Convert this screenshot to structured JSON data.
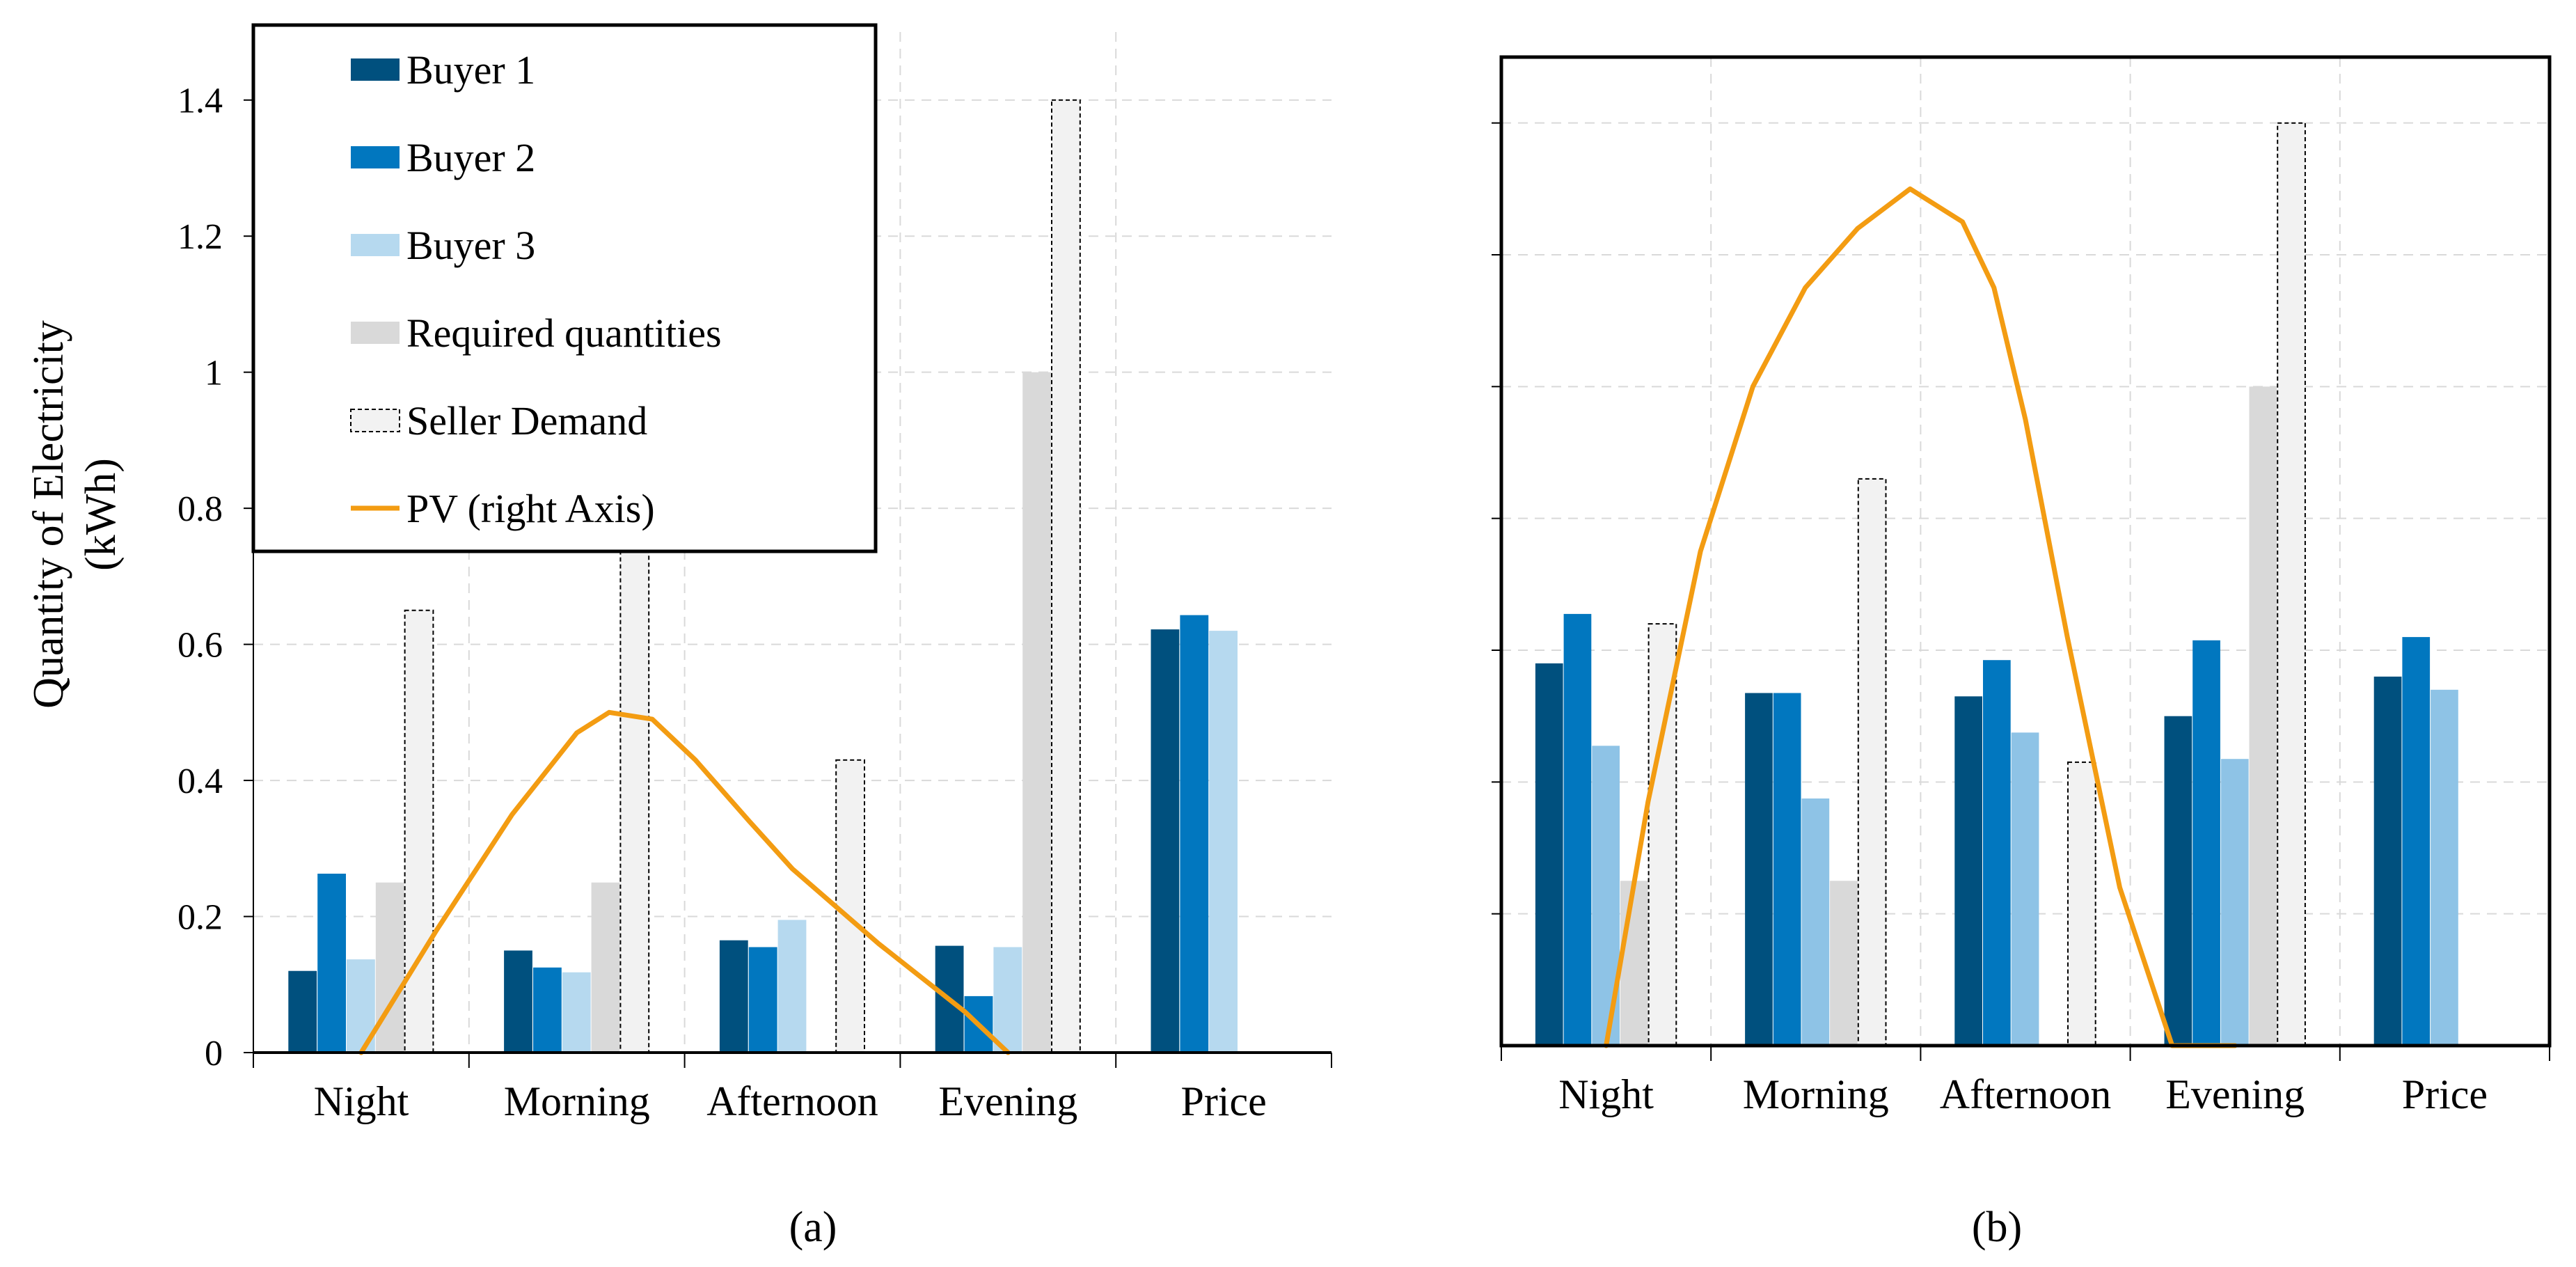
{
  "figure": {
    "caption_a": "(a)",
    "caption_b": "(b)"
  },
  "colors": {
    "buyer1": "#00507E",
    "buyer2": "#0177BF",
    "buyer3_a": "#B6D9EF",
    "buyer3_b": "#8EC3E6",
    "required": "#D9D9D9",
    "seller": "#F2F2F2",
    "pv": "#F39C12"
  },
  "legend": {
    "items": [
      {
        "label": "Buyer 1",
        "key": "buyer1"
      },
      {
        "label": "Buyer 2",
        "key": "buyer2"
      },
      {
        "label": "Buyer 3",
        "key": "buyer3_a"
      },
      {
        "label": "Required quantities",
        "key": "required"
      },
      {
        "label": "Seller Demand",
        "key": "seller"
      },
      {
        "label": "PV (right Axis)",
        "key": "pv"
      }
    ]
  },
  "chart_data": [
    {
      "panel": "a",
      "type": "bar",
      "ylabel_line1": "Quantity of Electricity",
      "ylabel_line2": "(kWh)",
      "ylim": [
        0,
        1.5
      ],
      "yticks": [
        0,
        0.2,
        0.4,
        0.6,
        0.8,
        1,
        1.2,
        1.4
      ],
      "ytick_labels": [
        "0",
        "0.2",
        "0.4",
        "0.6",
        "0.8",
        "1",
        "1.2",
        "1.4"
      ],
      "grid": true,
      "categories": [
        "Night",
        "Morning",
        "Afternoon",
        "Evening",
        "Price"
      ],
      "series": [
        {
          "name": "Buyer 1",
          "key": "buyer1",
          "values": [
            0.12,
            0.15,
            0.165,
            0.157,
            0.622
          ]
        },
        {
          "name": "Buyer 2",
          "key": "buyer2",
          "values": [
            0.263,
            0.125,
            0.155,
            0.083,
            0.643
          ]
        },
        {
          "name": "Buyer 3",
          "key": "buyer3_a",
          "values": [
            0.137,
            0.118,
            0.195,
            0.155,
            0.62
          ]
        },
        {
          "name": "Required quantities",
          "key": "required",
          "values": [
            0.25,
            0.25,
            null,
            1.0,
            null
          ]
        },
        {
          "name": "Seller Demand",
          "key": "seller",
          "values": [
            0.65,
            0.75,
            0.43,
            1.4,
            null
          ]
        }
      ],
      "pv_curve": {
        "name": "PV (right Axis)",
        "x": [
          0,
          0.35,
          0.7,
          1.0,
          1.15,
          1.35,
          1.55,
          1.8,
          2.0,
          2.4,
          2.8,
          3.0
        ],
        "y": [
          0.0,
          0.18,
          0.35,
          0.47,
          0.5,
          0.49,
          0.43,
          0.34,
          0.27,
          0.16,
          0.06,
          0.0
        ]
      }
    },
    {
      "panel": "b",
      "type": "bar",
      "ylim": [
        0,
        1.5
      ],
      "yticks": [
        0.2,
        0.4,
        0.6,
        0.8,
        1,
        1.2,
        1.4
      ],
      "ytick_labels": [],
      "grid": true,
      "categories": [
        "Night",
        "Morning",
        "Afternoon",
        "Evening",
        "Price"
      ],
      "series": [
        {
          "name": "Buyer 1",
          "key": "buyer1",
          "values": [
            0.58,
            0.535,
            0.53,
            0.5,
            0.56
          ]
        },
        {
          "name": "Buyer 2",
          "key": "buyer2",
          "values": [
            0.655,
            0.535,
            0.585,
            0.615,
            0.62
          ]
        },
        {
          "name": "Buyer 3",
          "key": "buyer3_b",
          "values": [
            0.455,
            0.375,
            0.475,
            0.435,
            0.54
          ]
        },
        {
          "name": "Required quantities",
          "key": "required",
          "values": [
            0.25,
            0.25,
            null,
            1.0,
            null
          ]
        },
        {
          "name": "Seller Demand",
          "key": "seller",
          "values": [
            0.64,
            0.86,
            0.43,
            1.4,
            null
          ]
        }
      ],
      "pv_curve": {
        "name": "PV (right Axis)",
        "x": [
          0,
          0.2,
          0.45,
          0.7,
          0.95,
          1.2,
          1.45,
          1.7,
          1.85,
          2.0,
          2.2,
          2.45,
          2.7,
          3.0
        ],
        "y": [
          0.0,
          0.37,
          0.75,
          1.0,
          1.15,
          1.24,
          1.3,
          1.25,
          1.15,
          0.95,
          0.62,
          0.24,
          0.0,
          0.0
        ]
      }
    }
  ]
}
